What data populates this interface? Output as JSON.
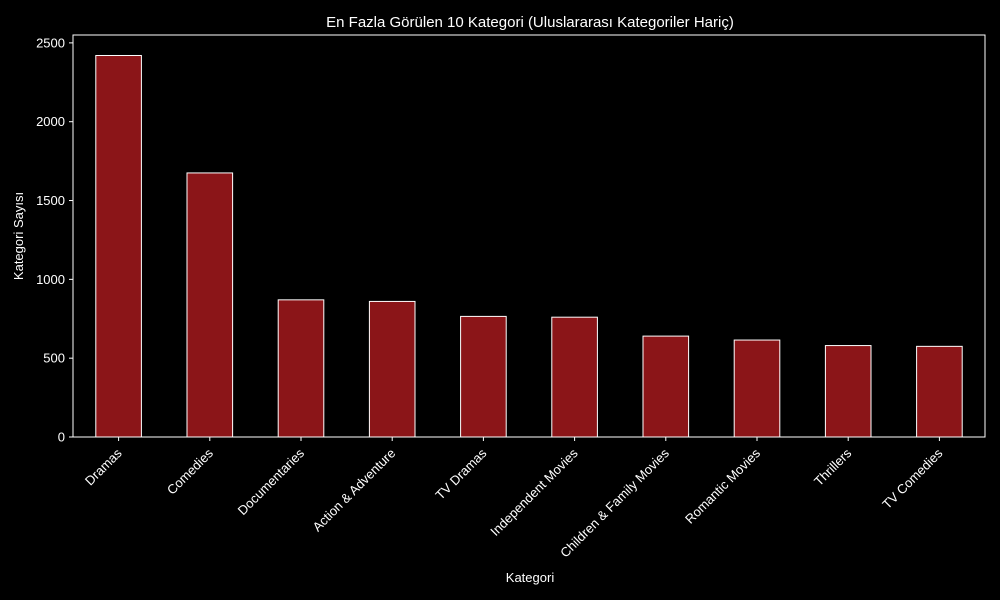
{
  "chart_data": {
    "type": "bar",
    "title": "En Fazla Görülen 10 Kategori (Uluslararası Kategoriler Hariç)",
    "xlabel": "Kategori",
    "ylabel": "Kategori Sayısı",
    "categories": [
      "Dramas",
      "Comedies",
      "Documentaries",
      "Action & Adventure",
      "TV Dramas",
      "Independent Movies",
      "Children & Family Movies",
      "Romantic Movies",
      "Thrillers",
      "TV Comedies"
    ],
    "values": [
      2420,
      1675,
      870,
      860,
      765,
      760,
      640,
      615,
      580,
      575
    ],
    "ylim": [
      0,
      2550
    ],
    "yticks": [
      0,
      500,
      1000,
      1500,
      2000,
      2500
    ],
    "grid": false,
    "legend": "none",
    "colors": {
      "background": "#000000",
      "bar_fill": "#8b1518",
      "bar_edge": "#ffffff",
      "text": "#ffffff",
      "axis": "#ffffff"
    }
  }
}
